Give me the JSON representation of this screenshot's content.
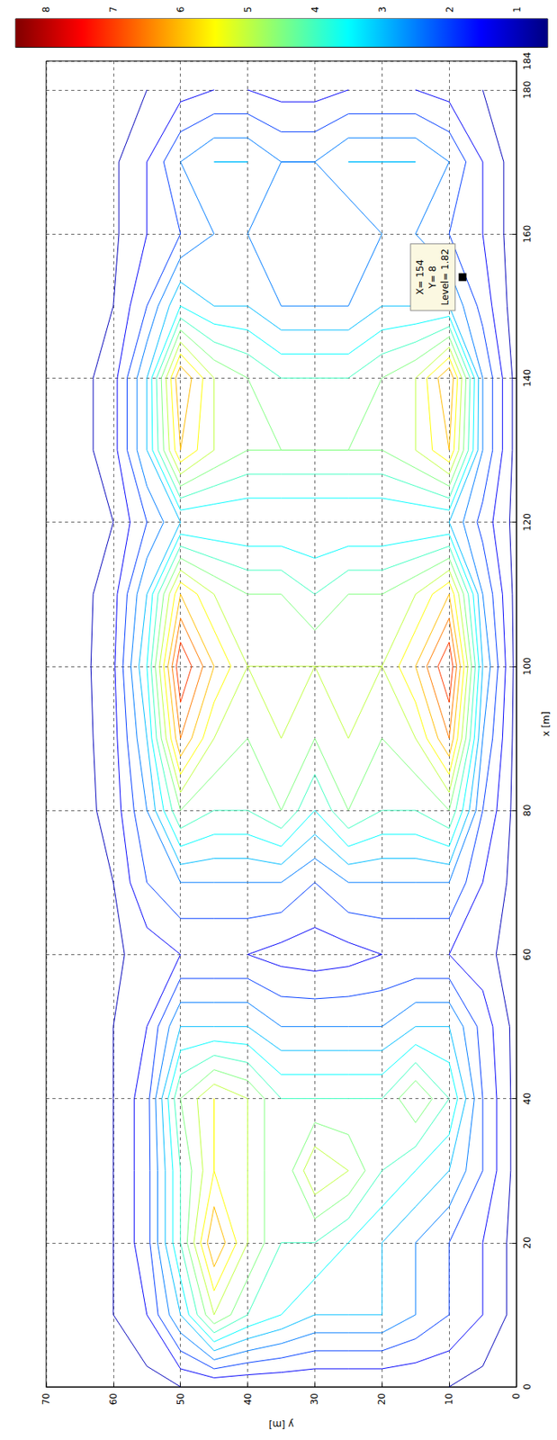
{
  "chart_data": {
    "type": "contour",
    "x_label": "x [m]",
    "y_label": "y [m]",
    "xlim": [
      0,
      184
    ],
    "xticks": [
      0,
      20,
      40,
      60,
      80,
      100,
      120,
      140,
      160,
      180
    ],
    "ylim": [
      0,
      70
    ],
    "yticks": [
      0,
      10,
      20,
      30,
      40,
      50,
      60,
      70
    ],
    "grid": true,
    "x": [
      0,
      10,
      20,
      30,
      40,
      50,
      60,
      70,
      80,
      90,
      100,
      110,
      120,
      130,
      140,
      150,
      160,
      170,
      180
    ],
    "y": [
      0,
      5,
      10,
      15,
      20,
      25,
      30,
      35,
      40,
      45,
      50,
      55,
      60,
      65,
      70
    ],
    "z": [
      [
        0.5,
        0.8,
        1,
        1,
        1,
        1,
        1,
        1,
        1,
        1,
        1,
        0.8,
        0.6,
        0.5,
        0.4
      ],
      [
        0.8,
        1.5,
        2,
        2.5,
        3,
        3,
        3,
        3.5,
        4,
        5,
        3,
        1.5,
        1,
        0.7,
        0.5
      ],
      [
        0.8,
        1.5,
        2,
        2.5,
        3,
        3.5,
        4,
        4,
        5,
        6.5,
        4,
        1.8,
        1,
        0.7,
        0.5
      ],
      [
        0.8,
        2,
        3,
        3.5,
        4,
        5,
        5.5,
        4,
        5,
        5.5,
        4,
        1.8,
        1,
        0.7,
        0.5
      ],
      [
        0.8,
        2,
        4,
        5,
        4,
        4,
        4,
        4,
        5,
        5.5,
        4.5,
        1.8,
        1,
        0.7,
        0.5
      ],
      [
        0.8,
        1.8,
        3,
        3,
        2.5,
        2.5,
        2.5,
        2.5,
        3,
        3,
        3,
        1.5,
        1,
        0.7,
        0.5
      ],
      [
        0.7,
        1.2,
        1.5,
        1.5,
        1.5,
        1.3,
        1.2,
        1.3,
        1.5,
        1.5,
        1.5,
        1.2,
        0.9,
        0.7,
        0.5
      ],
      [
        0.8,
        1.5,
        2.5,
        2.5,
        2.5,
        2.5,
        2,
        2.5,
        2.5,
        2.5,
        2.5,
        2,
        1,
        0.7,
        0.5
      ],
      [
        0.8,
        2,
        4.5,
        4,
        4,
        4.5,
        3.5,
        4.5,
        4,
        4,
        4.5,
        2.5,
        1.2,
        0.8,
        0.5
      ],
      [
        0.8,
        2.5,
        6.5,
        5,
        4.5,
        5,
        4.5,
        5,
        4.5,
        5,
        6.5,
        3,
        1.3,
        0.8,
        0.6
      ],
      [
        0.8,
        3,
        7.5,
        6,
        5,
        5,
        5,
        5,
        5,
        6,
        7.5,
        3.5,
        1.4,
        0.8,
        0.6
      ],
      [
        0.8,
        2.5,
        6,
        5,
        4.5,
        4.5,
        4,
        4.5,
        4.5,
        5,
        6,
        3,
        1.3,
        0.8,
        0.6
      ],
      [
        0.8,
        1.8,
        3,
        3,
        3,
        3,
        3,
        3,
        3,
        3,
        3,
        2,
        1,
        0.7,
        0.5
      ],
      [
        0.8,
        2.5,
        6,
        5,
        4.5,
        4.5,
        4.5,
        4.5,
        4.5,
        5,
        6,
        3,
        1.3,
        0.8,
        0.6
      ],
      [
        0.8,
        2.5,
        6.5,
        5,
        4.5,
        4,
        4,
        4,
        4.5,
        5,
        6.5,
        3,
        1.3,
        0.8,
        0.6
      ],
      [
        0.7,
        1.8,
        3,
        3,
        3,
        2.5,
        2.5,
        2.5,
        3,
        3,
        3.5,
        2,
        1,
        0.7,
        0.5
      ],
      [
        0.7,
        1.5,
        2,
        2.5,
        2.5,
        2,
        2,
        2,
        2.5,
        2.5,
        2,
        1.5,
        0.9,
        0.7,
        0.5
      ],
      [
        0.7,
        1.5,
        2.5,
        3,
        3,
        3,
        2.5,
        2.5,
        3,
        3,
        2.5,
        1.5,
        0.9,
        0.7,
        0.5
      ],
      [
        0.6,
        1,
        1.3,
        1.5,
        1.5,
        1.5,
        1.3,
        1.3,
        1.5,
        1.5,
        1.3,
        1,
        0.8,
        0.6,
        0.5
      ]
    ],
    "levels": [
      1,
      1.5,
      2,
      2.5,
      3,
      3.5,
      4,
      4.5,
      5,
      5.5,
      6,
      6.5,
      7,
      7.5,
      8
    ],
    "colorbar": {
      "range": [
        0.55,
        8.45
      ],
      "ticks": [
        1,
        2,
        3,
        4,
        5,
        6,
        7,
        8
      ]
    },
    "annotation": {
      "x": 154,
      "y": 8,
      "lines": [
        "X= 154",
        "Y= 8",
        "Level= 1.82"
      ]
    }
  }
}
